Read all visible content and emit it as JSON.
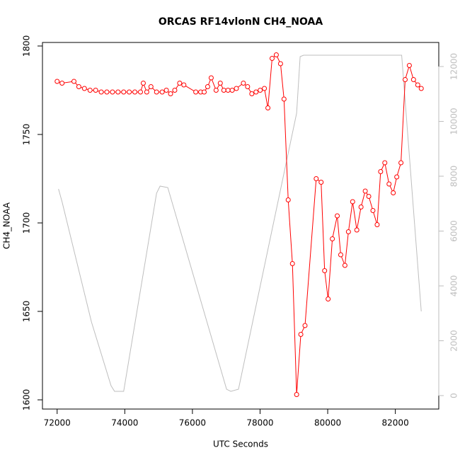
{
  "chart_data": {
    "type": "line",
    "title": "ORCAS RF14vlonN CH4_NOAA",
    "x_label": "UTC Seconds",
    "y_label": "CH4_NOAA",
    "xlim": [
      71566,
      83284
    ],
    "xticks": [
      72000,
      74000,
      76000,
      78000,
      80000,
      82000
    ],
    "ylim": [
      1594.8,
      1802
    ],
    "yticks": [
      1600,
      1650,
      1700,
      1750,
      1800
    ],
    "y2lim": [
      -490,
      12877
    ],
    "y2ticks": [
      0,
      2000,
      4000,
      6000,
      8000,
      10000,
      12000
    ],
    "series": [
      {
        "color": "#bebebe",
        "axis": "y2",
        "markers": false,
        "x": [
          72040,
          72145,
          73015,
          73594,
          73698,
          73967,
          74940,
          75044,
          75271,
          77010,
          77135,
          77362,
          79081,
          79185,
          79288,
          82187,
          82766
        ],
        "values": [
          7535,
          7070,
          2684,
          361,
          155,
          155,
          7380,
          7639,
          7587,
          232,
          155,
          232,
          10297,
          12361,
          12413,
          12413,
          3071
        ]
      },
      {
        "color": "#ff0000",
        "axis": "y",
        "markers": true,
        "x": [
          72000,
          72145,
          72497,
          72642,
          72807,
          72973,
          73139,
          73304,
          73470,
          73636,
          73801,
          73967,
          74132,
          74298,
          74464,
          74547,
          74650,
          74774,
          74940,
          75106,
          75230,
          75354,
          75478,
          75623,
          75747,
          76099,
          76244,
          76348,
          76451,
          76555,
          76700,
          76824,
          76928,
          77052,
          77176,
          77300,
          77507,
          77631,
          77756,
          77880,
          78004,
          78128,
          78232,
          78356,
          78480,
          78605,
          78708,
          78832,
          78957,
          79081,
          79205,
          79329,
          79660,
          79805,
          79909,
          80012,
          80137,
          80282,
          80385,
          80509,
          80613,
          80737,
          80861,
          80985,
          81110,
          81213,
          81337,
          81462,
          81565,
          81689,
          81814,
          81938,
          82042,
          82166,
          82290,
          82414,
          82538,
          82663,
          82766
        ],
        "values": [
          1780,
          1779,
          1780,
          1777,
          1776,
          1775,
          1775,
          1774,
          1774,
          1774,
          1774,
          1774,
          1774,
          1774,
          1774,
          1779,
          1774,
          1777,
          1774,
          1774,
          1775,
          1773,
          1775,
          1779,
          1778,
          1774,
          1774,
          1774,
          1777,
          1782,
          1775,
          1779,
          1775,
          1775,
          1775,
          1776,
          1779,
          1777,
          1773,
          1774,
          1775,
          1776,
          1765,
          1793,
          1795,
          1790,
          1770,
          1713,
          1677,
          1603,
          1637,
          1642,
          1725,
          1723,
          1673,
          1657,
          1691,
          1704,
          1682,
          1676,
          1695,
          1712,
          1696,
          1709,
          1718,
          1715,
          1707,
          1699,
          1729,
          1734,
          1722,
          1717,
          1726,
          1734,
          1781,
          1789,
          1781,
          1778,
          1776
        ]
      }
    ]
  }
}
